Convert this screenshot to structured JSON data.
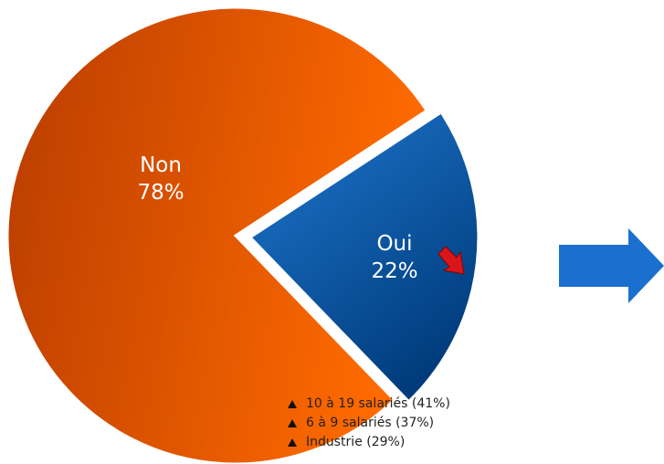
{
  "chart_data": {
    "type": "pie",
    "categories": [
      "Non",
      "Oui"
    ],
    "values": [
      78,
      22
    ],
    "value_labels": [
      "78%",
      "22%"
    ],
    "colors": [
      "#e85c0a",
      "#0d5aa8"
    ],
    "annotations": [
      "10 à 19 salariés (41%)",
      "6 à 9 salariés (37%)",
      "Industrie (29%)"
    ]
  }
}
